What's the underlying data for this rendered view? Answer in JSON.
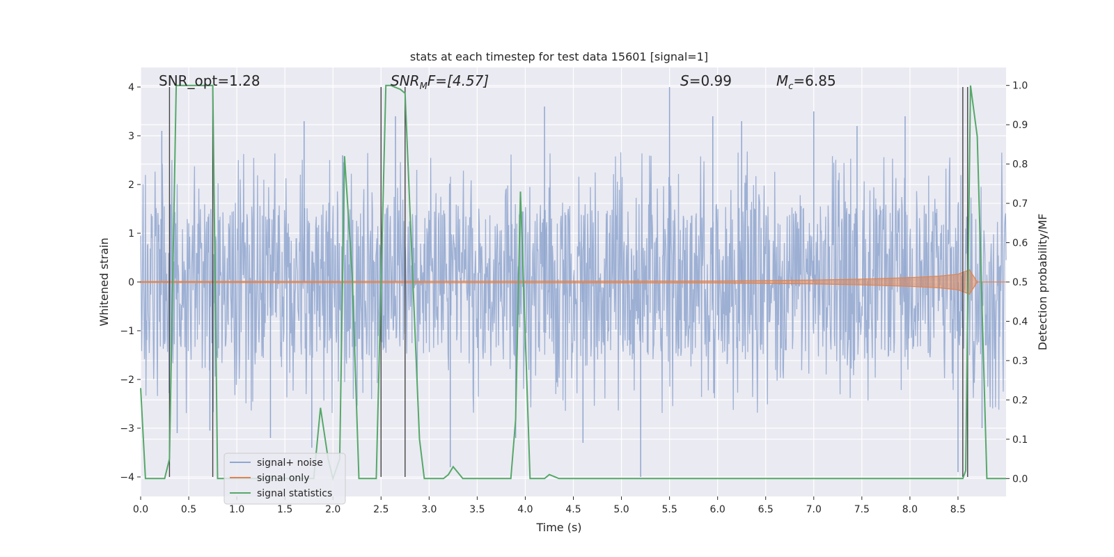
{
  "chart_data": {
    "type": "line",
    "title": "stats at each timestep for test data 15601 [signal=1]",
    "xlabel": "Time (s)",
    "ylabel_left": "Whitened strain",
    "ylabel_right": "Detection probability/MF",
    "xlim": [
      0,
      9
    ],
    "ylim_left": [
      -4.4,
      4.4
    ],
    "ylim_right": [
      -0.0455,
      1.0455
    ],
    "xticks": [
      0,
      0.5,
      1,
      1.5,
      2,
      2.5,
      3,
      3.5,
      4,
      4.5,
      5,
      5.5,
      6,
      6.5,
      7,
      7.5,
      8,
      8.5
    ],
    "xtick_labels": [
      "0.0",
      "0.5",
      "1.0",
      "1.5",
      "2.0",
      "2.5",
      "3.0",
      "3.5",
      "4.0",
      "4.5",
      "5.0",
      "5.5",
      "6.0",
      "6.5",
      "7.0",
      "7.5",
      "8.0",
      "8.5"
    ],
    "yticks_left": [
      -4,
      -3,
      -2,
      -1,
      0,
      1,
      2,
      3,
      4
    ],
    "ytick_labels_left": [
      "−4",
      "−3",
      "−2",
      "−1",
      "0",
      "1",
      "2",
      "3",
      "4"
    ],
    "yticks_right": [
      0.0,
      0.1,
      0.2,
      0.3,
      0.4,
      0.5,
      0.6,
      0.7,
      0.8,
      0.9,
      1.0
    ],
    "ytick_labels_right": [
      "0.0",
      "0.1",
      "0.2",
      "0.3",
      "0.4",
      "0.5",
      "0.6",
      "0.7",
      "0.8",
      "0.9",
      "1.0"
    ],
    "annotations": {
      "snr_opt": "SNR_opt=1.28",
      "snr_mf_base": "SNR",
      "snr_mf_sub": "M",
      "snr_mf_rest": "F=[4.57]",
      "s_label": "S",
      "s_value": "=0.99",
      "mc_label": "M",
      "mc_sub": "c",
      "mc_value": "=6.85"
    },
    "legend": {
      "placement": "lower-left",
      "entries": [
        "signal+ noise",
        "signal only",
        "signal statistics"
      ]
    },
    "colors": {
      "background": "#eaeaf2",
      "grid": "#ffffff",
      "noise": "#8fa6cf",
      "signal": "#dd8452",
      "statistics": "#55a868",
      "vlines": "#444444"
    },
    "series": [
      {
        "name": "signal+ noise",
        "axis": "left",
        "note": "dense noisy whitened strain, roughly ±1.6 envelope with spikes to ±4",
        "amplitude_envelope": 1.6,
        "spikes": [
          {
            "x": 0.22,
            "y": 3.1
          },
          {
            "x": 0.38,
            "y": -3.1
          },
          {
            "x": 0.72,
            "y": -3.05
          },
          {
            "x": 1.35,
            "y": -3.2
          },
          {
            "x": 1.7,
            "y": 3.3
          },
          {
            "x": 1.78,
            "y": -3.4
          },
          {
            "x": 2.1,
            "y": 2.6
          },
          {
            "x": 2.65,
            "y": 3.4
          },
          {
            "x": 3.22,
            "y": -3.8
          },
          {
            "x": 3.9,
            "y": -3.2
          },
          {
            "x": 4.2,
            "y": 3.6
          },
          {
            "x": 4.6,
            "y": -3.3
          },
          {
            "x": 5.2,
            "y": -4.0
          },
          {
            "x": 5.5,
            "y": 4.0
          },
          {
            "x": 5.95,
            "y": 3.4
          },
          {
            "x": 6.25,
            "y": 3.3
          },
          {
            "x": 7.0,
            "y": 3.5
          },
          {
            "x": 7.45,
            "y": 3.2
          },
          {
            "x": 7.95,
            "y": 3.4
          },
          {
            "x": 8.5,
            "y": -3.9
          },
          {
            "x": 8.75,
            "y": -3.0
          }
        ]
      },
      {
        "name": "signal only",
        "axis": "left",
        "note": "near-zero chirp growing toward ~8.6 s",
        "x": [
          0,
          6.0,
          7.0,
          7.5,
          8.0,
          8.3,
          8.5,
          8.62,
          8.7,
          9.0
        ],
        "amplitude": [
          0.01,
          0.02,
          0.04,
          0.06,
          0.09,
          0.12,
          0.16,
          0.25,
          0.0,
          0.0
        ]
      },
      {
        "name": "signal statistics",
        "axis": "right",
        "x": [
          0.0,
          0.05,
          0.25,
          0.3,
          0.37,
          0.75,
          0.8,
          0.9,
          1.8,
          1.87,
          1.95,
          2.0,
          2.07,
          2.12,
          2.2,
          2.27,
          2.45,
          2.55,
          2.6,
          2.7,
          2.75,
          2.9,
          2.95,
          3.0,
          3.15,
          3.2,
          3.25,
          3.35,
          3.4,
          3.85,
          3.9,
          3.95,
          4.05,
          4.2,
          4.25,
          4.35,
          8.55,
          8.58,
          8.63,
          8.7,
          8.8,
          9.0
        ],
        "values": [
          0.23,
          0.0,
          0.0,
          0.05,
          1.0,
          1.0,
          0.0,
          0.0,
          0.0,
          0.18,
          0.05,
          0.0,
          0.05,
          0.82,
          0.52,
          0.0,
          0.0,
          1.0,
          1.0,
          0.99,
          0.98,
          0.1,
          0.0,
          0.0,
          0.0,
          0.01,
          0.03,
          0.0,
          0.0,
          0.0,
          0.15,
          0.73,
          0.0,
          0.0,
          0.01,
          0.0,
          0.0,
          0.02,
          1.0,
          0.87,
          0.0,
          0.0
        ]
      }
    ],
    "vertical_lines": {
      "x": [
        0.3,
        0.75,
        2.5,
        2.75,
        8.55,
        8.6
      ],
      "ymin": -4,
      "ymax": 4
    }
  }
}
